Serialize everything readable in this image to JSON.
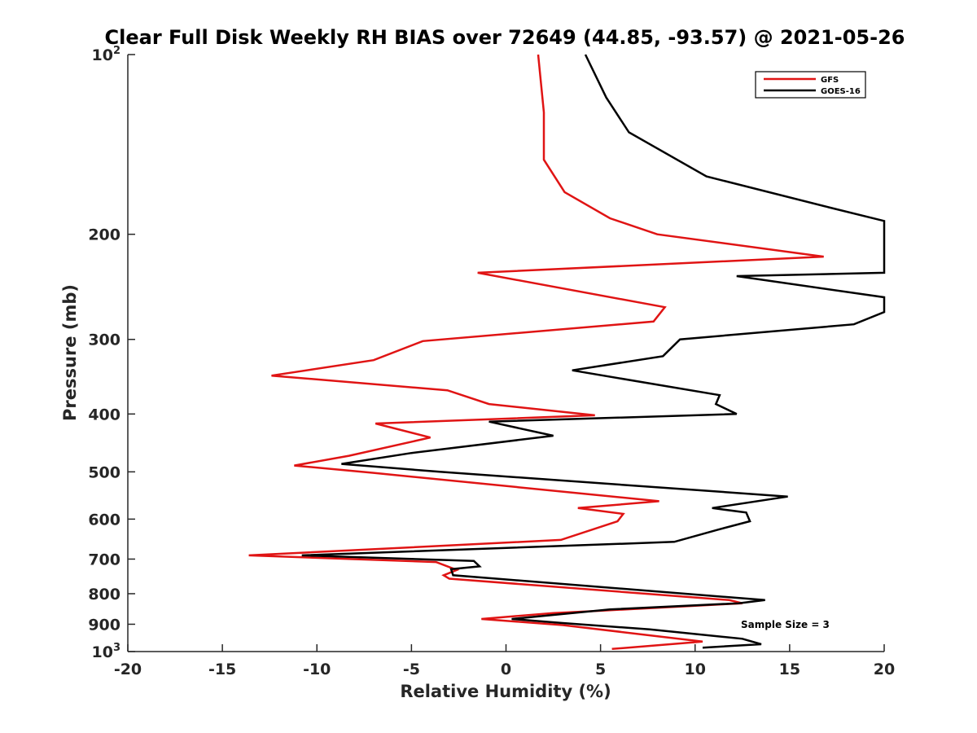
{
  "chart_data": {
    "type": "line",
    "title": "Clear Full Disk Weekly RH BIAS over 72649 (44.85, -93.57) @ 2021-05-26",
    "xlabel": "Relative Humidity (%)",
    "ylabel": "Pressure (mb)",
    "xlim": [
      -20,
      20
    ],
    "ylim": [
      100,
      1000
    ],
    "y_scale": "log",
    "y_reversed": true,
    "x_ticks": [
      -20,
      -15,
      -10,
      -5,
      0,
      5,
      10,
      15,
      20
    ],
    "x_tick_labels": [
      "-20",
      "-15",
      "-10",
      "-5",
      "0",
      "5",
      "10",
      "15",
      "20"
    ],
    "y_ticks": [
      100,
      200,
      300,
      400,
      500,
      600,
      700,
      800,
      900,
      1000
    ],
    "y_tick_labels": [
      {
        "value": 100,
        "base": "10",
        "exp": "2"
      },
      {
        "value": 200,
        "base": "200",
        "exp": ""
      },
      {
        "value": 300,
        "base": "300",
        "exp": ""
      },
      {
        "value": 400,
        "base": "400",
        "exp": ""
      },
      {
        "value": 500,
        "base": "500",
        "exp": ""
      },
      {
        "value": 600,
        "base": "600",
        "exp": ""
      },
      {
        "value": 700,
        "base": "700",
        "exp": ""
      },
      {
        "value": 800,
        "base": "800",
        "exp": ""
      },
      {
        "value": 900,
        "base": "900",
        "exp": ""
      },
      {
        "value": 1000,
        "base": "10",
        "exp": "3"
      }
    ],
    "grid": false,
    "legend_position": "top-right",
    "annotation": "Sample Size = 3",
    "series": [
      {
        "name": "GFS",
        "color": "#e01414",
        "points": [
          [
            1.7,
            100
          ],
          [
            2.0,
            125
          ],
          [
            2.0,
            150
          ],
          [
            3.1,
            170
          ],
          [
            5.5,
            188
          ],
          [
            8.0,
            200
          ],
          [
            16.8,
            218
          ],
          [
            -1.5,
            232
          ],
          [
            8.4,
            265
          ],
          [
            7.8,
            280
          ],
          [
            -4.4,
            302
          ],
          [
            -7.0,
            325
          ],
          [
            -12.4,
            345
          ],
          [
            -3.1,
            365
          ],
          [
            -0.9,
            385
          ],
          [
            4.7,
            402
          ],
          [
            -6.9,
            415
          ],
          [
            -4.0,
            438
          ],
          [
            -8.3,
            470
          ],
          [
            -11.2,
            488
          ],
          [
            -7.0,
            502
          ],
          [
            8.1,
            560
          ],
          [
            3.8,
            575
          ],
          [
            6.2,
            588
          ],
          [
            5.9,
            605
          ],
          [
            2.9,
            650
          ],
          [
            -13.6,
            690
          ],
          [
            -3.7,
            708
          ],
          [
            -2.6,
            730
          ],
          [
            -3.3,
            745
          ],
          [
            -3.0,
            755
          ],
          [
            11.8,
            820
          ],
          [
            12.5,
            830
          ],
          [
            4.8,
            855
          ],
          [
            2.5,
            862
          ],
          [
            -1.3,
            882
          ],
          [
            3.0,
            903
          ],
          [
            10.4,
            962
          ],
          [
            5.6,
            990
          ]
        ]
      },
      {
        "name": "GOES-16",
        "color": "#000000",
        "points": [
          [
            4.2,
            100
          ],
          [
            5.3,
            118
          ],
          [
            6.5,
            135
          ],
          [
            10.6,
            160
          ],
          [
            17.0,
            180
          ],
          [
            20.0,
            190
          ],
          [
            20.0,
            232
          ],
          [
            12.2,
            235
          ],
          [
            20.0,
            255
          ],
          [
            20.0,
            270
          ],
          [
            18.4,
            283
          ],
          [
            9.2,
            300
          ],
          [
            8.3,
            320
          ],
          [
            3.5,
            338
          ],
          [
            11.3,
            372
          ],
          [
            11.1,
            385
          ],
          [
            12.2,
            400
          ],
          [
            -0.9,
            412
          ],
          [
            2.5,
            435
          ],
          [
            -5.0,
            465
          ],
          [
            -8.7,
            485
          ],
          [
            -3.5,
            500
          ],
          [
            14.9,
            550
          ],
          [
            10.9,
            575
          ],
          [
            12.7,
            585
          ],
          [
            12.9,
            605
          ],
          [
            11.2,
            625
          ],
          [
            8.9,
            655
          ],
          [
            -10.8,
            690
          ],
          [
            -1.7,
            705
          ],
          [
            -1.4,
            720
          ],
          [
            -2.9,
            728
          ],
          [
            -2.8,
            745
          ],
          [
            13.7,
            820
          ],
          [
            12.3,
            830
          ],
          [
            5.5,
            850
          ],
          [
            0.3,
            882
          ],
          [
            3.0,
            896
          ],
          [
            7.6,
            918
          ],
          [
            12.5,
            952
          ],
          [
            13.5,
            972
          ],
          [
            10.4,
            985
          ]
        ]
      }
    ]
  }
}
